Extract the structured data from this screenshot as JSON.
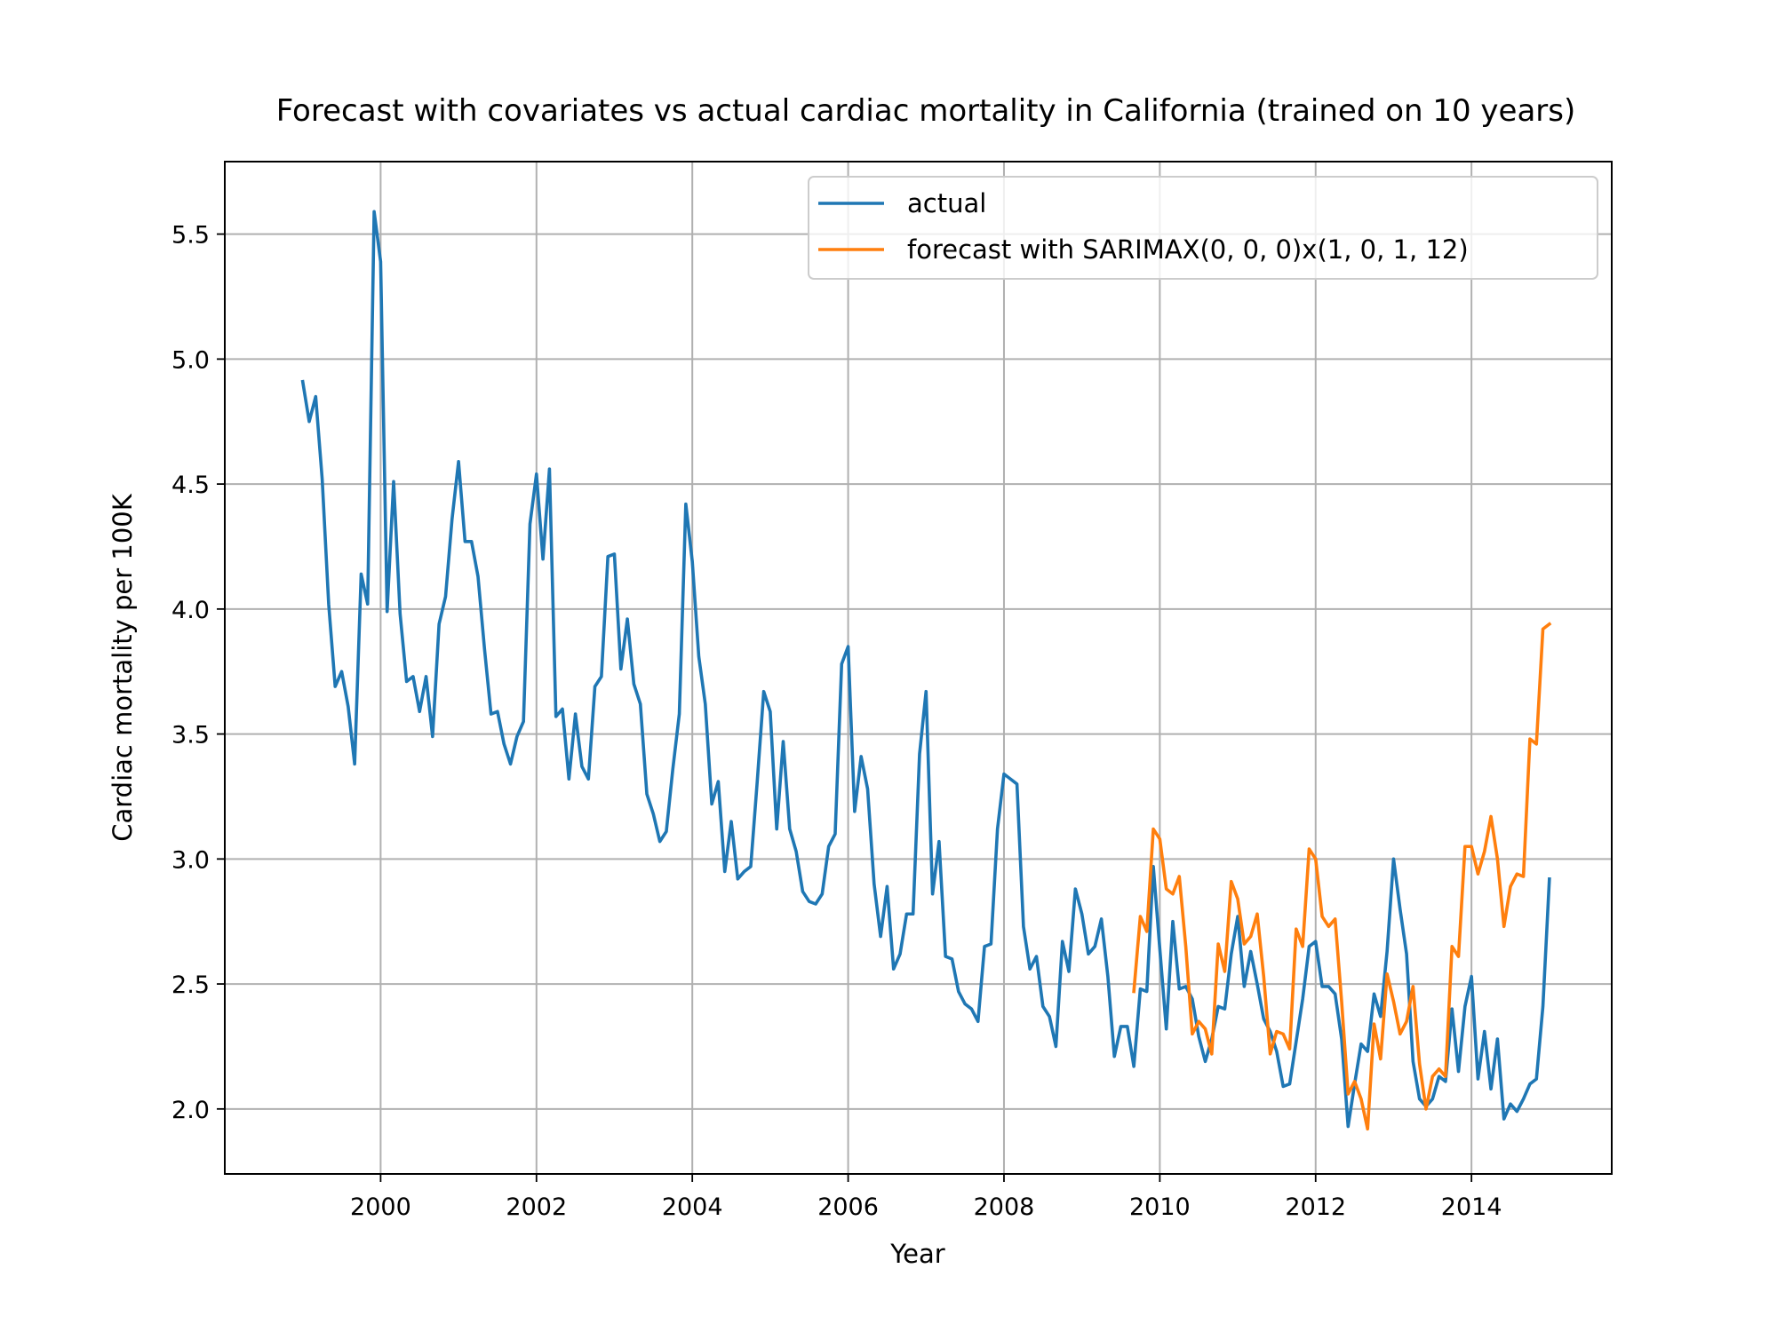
{
  "chart_data": {
    "type": "line",
    "title": "Forecast with covariates vs actual cardiac mortality in California (trained on 10 years)",
    "xlabel": "Year",
    "ylabel": "Cardiac mortality per 100K",
    "xlim": [
      1998.0,
      2015.8
    ],
    "ylim": [
      1.74,
      5.79
    ],
    "xticks": [
      2000,
      2002,
      2004,
      2006,
      2008,
      2010,
      2012,
      2014
    ],
    "yticks": [
      2.0,
      2.5,
      3.0,
      3.5,
      4.0,
      4.5,
      5.0,
      5.5
    ],
    "grid": true,
    "legend_position": "top-right",
    "series": [
      {
        "name": "actual",
        "color": "#1f77b4",
        "x_start_year": 1999,
        "x_start_month": 1,
        "step": "monthly",
        "values": [
          4.91,
          4.75,
          4.85,
          4.52,
          4.02,
          3.69,
          3.75,
          3.61,
          3.38,
          4.14,
          4.02,
          5.59,
          5.39,
          3.99,
          4.51,
          3.98,
          3.71,
          3.73,
          3.59,
          3.73,
          3.49,
          3.94,
          4.05,
          4.36,
          4.59,
          4.27,
          4.27,
          4.13,
          3.84,
          3.58,
          3.59,
          3.46,
          3.38,
          3.49,
          3.55,
          4.34,
          4.54,
          4.2,
          4.56,
          3.57,
          3.6,
          3.32,
          3.58,
          3.37,
          3.32,
          3.69,
          3.73,
          4.21,
          4.22,
          3.76,
          3.96,
          3.7,
          3.62,
          3.26,
          3.18,
          3.07,
          3.11,
          3.36,
          3.58,
          4.42,
          4.19,
          3.81,
          3.62,
          3.22,
          3.31,
          2.95,
          3.15,
          2.92,
          2.95,
          2.97,
          3.31,
          3.67,
          3.59,
          3.12,
          3.47,
          3.12,
          3.03,
          2.87,
          2.83,
          2.82,
          2.86,
          3.05,
          3.1,
          3.78,
          3.85,
          3.19,
          3.41,
          3.28,
          2.9,
          2.69,
          2.89,
          2.56,
          2.62,
          2.78,
          2.78,
          3.42,
          3.67,
          2.86,
          3.07,
          2.61,
          2.6,
          2.47,
          2.42,
          2.4,
          2.35,
          2.65,
          2.66,
          3.12,
          3.34,
          3.32,
          3.3,
          2.73,
          2.56,
          2.61,
          2.41,
          2.37,
          2.25,
          2.67,
          2.55,
          2.88,
          2.78,
          2.62,
          2.65,
          2.76,
          2.53,
          2.21,
          2.33,
          2.33,
          2.17,
          2.48,
          2.47,
          2.97,
          2.64,
          2.32,
          2.75,
          2.48,
          2.49,
          2.44,
          2.29,
          2.19,
          2.28,
          2.41,
          2.4,
          2.62,
          2.77,
          2.49,
          2.63,
          2.5,
          2.36,
          2.31,
          2.23,
          2.09,
          2.1,
          2.27,
          2.44,
          2.65,
          2.67,
          2.49,
          2.49,
          2.46,
          2.28,
          1.93,
          2.1,
          2.26,
          2.23,
          2.46,
          2.37,
          2.63,
          3.0,
          2.8,
          2.62,
          2.19,
          2.04,
          2.01,
          2.04,
          2.13,
          2.11,
          2.4,
          2.15,
          2.41,
          2.53,
          2.12,
          2.31,
          2.08,
          2.28,
          1.96,
          2.02,
          1.99,
          2.04,
          2.1,
          2.12,
          2.41,
          2.92
        ]
      },
      {
        "name": "forecast with SARIMAX(0, 0, 0)x(1, 0, 1, 12)",
        "color": "#ff7f0e",
        "x_start_year": 2009,
        "x_start_month": 9,
        "step": "monthly",
        "values": [
          2.47,
          2.77,
          2.71,
          3.12,
          3.08,
          2.88,
          2.86,
          2.93,
          2.65,
          2.3,
          2.35,
          2.32,
          2.22,
          2.66,
          2.55,
          2.91,
          2.84,
          2.66,
          2.69,
          2.78,
          2.53,
          2.22,
          2.31,
          2.3,
          2.24,
          2.72,
          2.65,
          3.04,
          3.0,
          2.77,
          2.73,
          2.76,
          2.43,
          2.06,
          2.11,
          2.04,
          1.92,
          2.34,
          2.2,
          2.54,
          2.43,
          2.3,
          2.35,
          2.49,
          2.18,
          2.0,
          2.13,
          2.16,
          2.13,
          2.65,
          2.61,
          3.05,
          3.05,
          2.94,
          3.03,
          3.17,
          3.0,
          2.73,
          2.89,
          2.94,
          2.93,
          3.48,
          3.46,
          3.92,
          3.94
        ]
      }
    ]
  }
}
